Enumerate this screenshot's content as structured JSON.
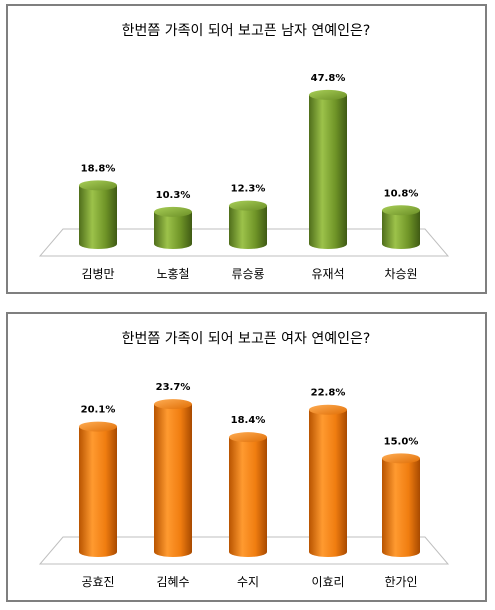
{
  "chart_data": [
    {
      "type": "bar",
      "title": "한번쯤 가족이 되어 보고픈 남자 연예인은?",
      "categories": [
        "김병만",
        "노홍철",
        "류승룡",
        "유재석",
        "차승원"
      ],
      "values": [
        18.8,
        10.3,
        12.3,
        47.8,
        10.8
      ],
      "value_labels": [
        "18.8%",
        "10.3%",
        "12.3%",
        "47.8%",
        "10.8%"
      ],
      "unit": "%",
      "ylim": [
        0,
        50
      ],
      "grid": false,
      "legend": "none",
      "color": "#77a02e"
    },
    {
      "type": "bar",
      "title": "한번쯤 가족이 되어 보고픈 여자 연예인은?",
      "categories": [
        "공효진",
        "김혜수",
        "수지",
        "이효리",
        "한가인"
      ],
      "values": [
        20.1,
        23.7,
        18.4,
        22.8,
        15.0
      ],
      "value_labels": [
        "20.1%",
        "23.7%",
        "18.4%",
        "22.8%",
        "15.0%"
      ],
      "unit": "%",
      "ylim": [
        0,
        25
      ],
      "grid": false,
      "legend": "none",
      "color": "#f07d10"
    }
  ]
}
